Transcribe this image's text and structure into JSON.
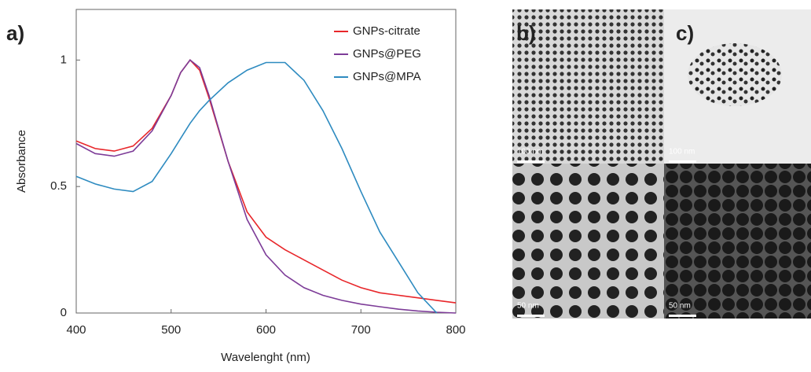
{
  "chart_data": {
    "type": "line",
    "xlabel": "Wavelenght (nm)",
    "ylabel": "Absorbance",
    "x": [
      400,
      420,
      440,
      460,
      480,
      500,
      510,
      520,
      530,
      540,
      560,
      580,
      600,
      620,
      640,
      660,
      680,
      700,
      720,
      740,
      760,
      780,
      800
    ],
    "series": [
      {
        "name": "GNPs-citrate",
        "color": "#e8262a",
        "values": [
          0.68,
          0.65,
          0.64,
          0.66,
          0.73,
          0.86,
          0.95,
          1.0,
          0.96,
          0.85,
          0.6,
          0.4,
          0.3,
          0.25,
          0.21,
          0.17,
          0.13,
          0.1,
          0.08,
          0.07,
          0.06,
          0.05,
          0.04
        ]
      },
      {
        "name": "GNPs@PEG",
        "color": "#7d3c98",
        "values": [
          0.67,
          0.63,
          0.62,
          0.64,
          0.72,
          0.86,
          0.95,
          1.0,
          0.97,
          0.86,
          0.6,
          0.37,
          0.23,
          0.15,
          0.1,
          0.07,
          0.05,
          0.035,
          0.025,
          0.015,
          0.008,
          0.003,
          0.0
        ]
      },
      {
        "name": "GNPs@MPA",
        "color": "#2e8bc0",
        "values": [
          0.54,
          0.51,
          0.49,
          0.48,
          0.52,
          0.63,
          0.69,
          0.75,
          0.8,
          0.84,
          0.91,
          0.96,
          0.99,
          0.99,
          0.92,
          0.8,
          0.65,
          0.48,
          0.32,
          0.2,
          0.08,
          0.0,
          null
        ]
      }
    ],
    "xlim": [
      400,
      800
    ],
    "xticks": [
      400,
      500,
      600,
      700,
      800
    ],
    "ylim": [
      0,
      1.2
    ],
    "yticks": [
      0,
      0.5,
      1
    ],
    "legend": "upper-right"
  },
  "panel_labels": [
    "a)",
    "b)",
    "c)"
  ],
  "scale_bars": [
    "100 nm",
    "100 nm",
    "50 nm",
    "50 nm"
  ]
}
